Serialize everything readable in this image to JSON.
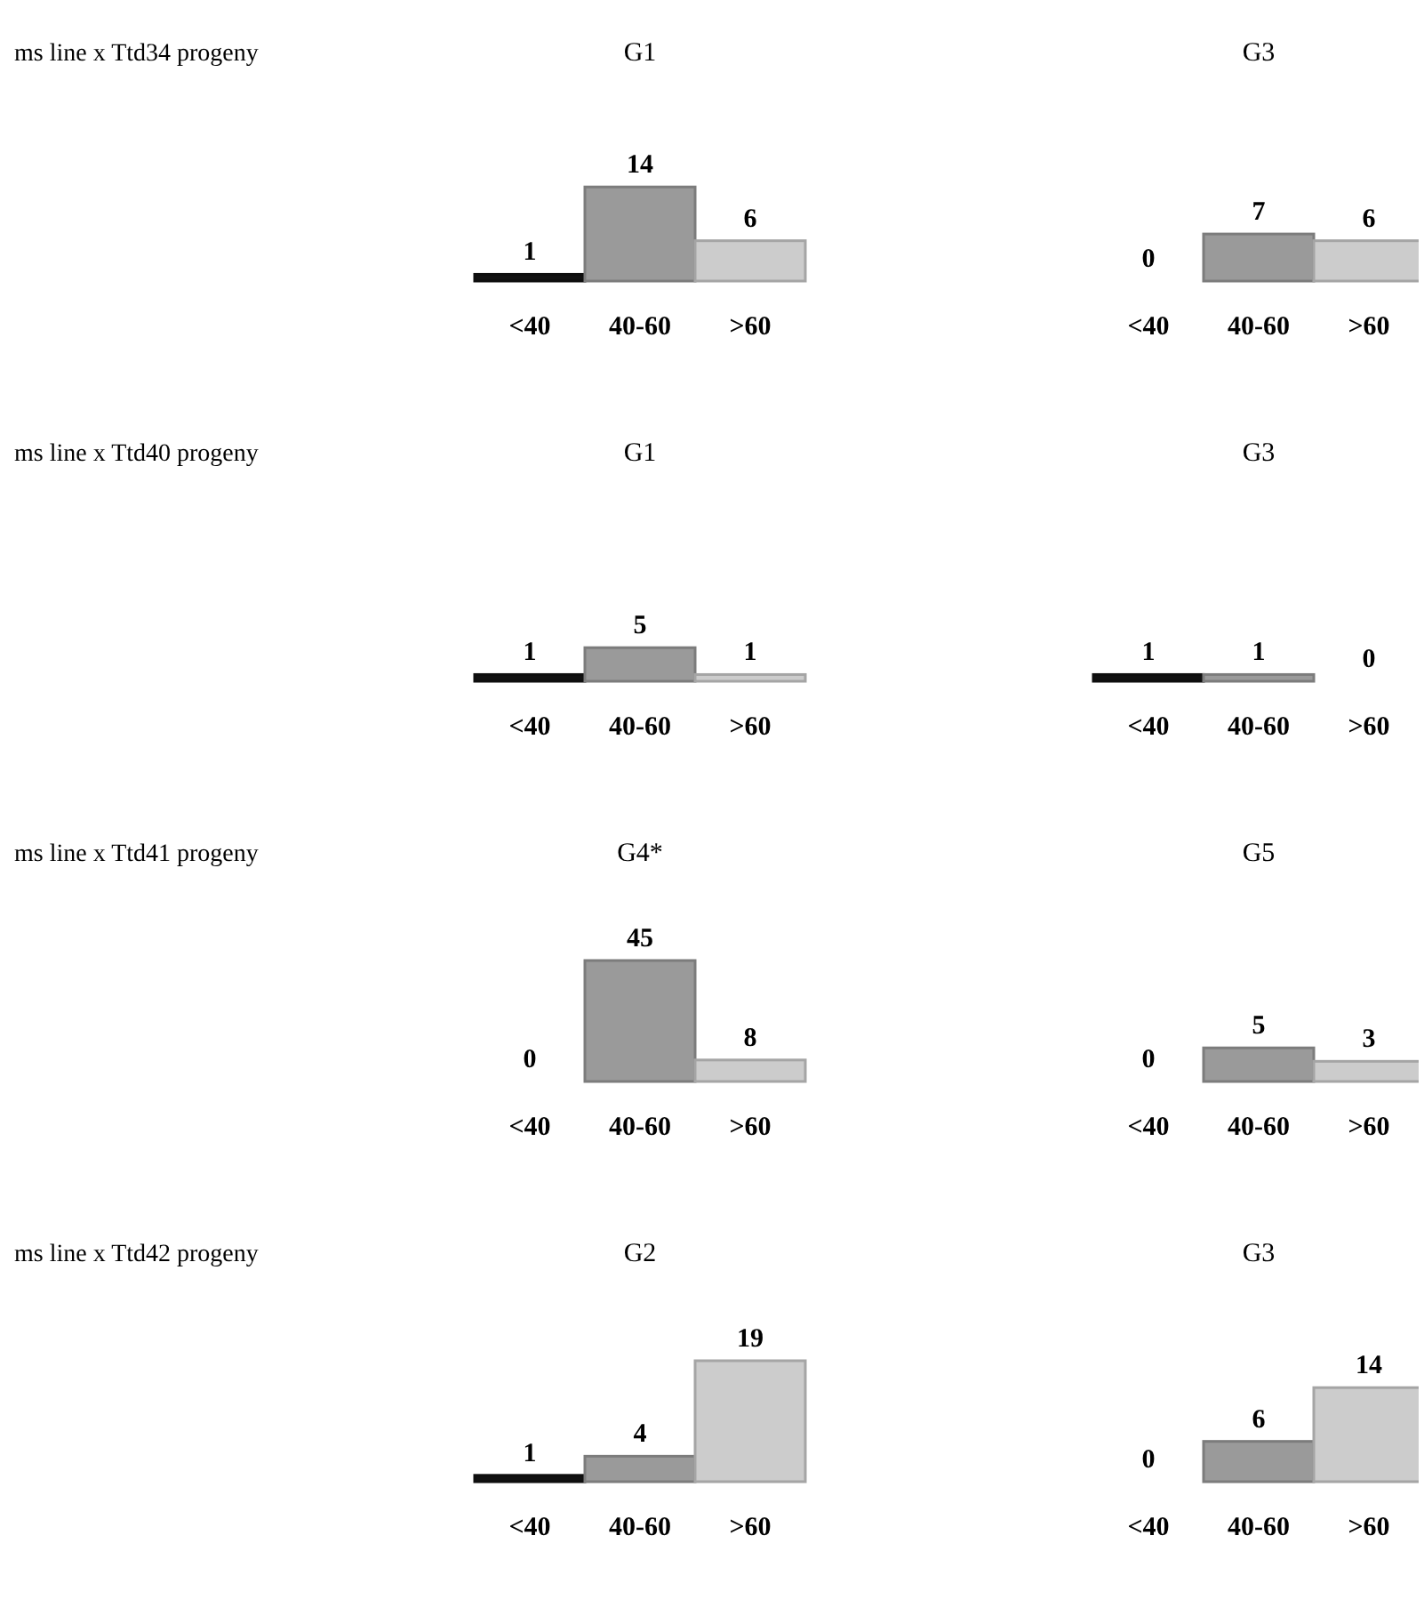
{
  "chart_data": [
    {
      "type": "bar",
      "title": "G1",
      "annotations": [
        "ms line x Ttd34 progeny"
      ],
      "categories": [
        "<40",
        "40-60",
        ">60"
      ],
      "values": [
        1,
        14,
        6
      ],
      "colors": [
        "#111111",
        "#9a9a9a",
        "#cccccc"
      ],
      "data_labels": true
    },
    {
      "type": "bar",
      "title": "G3",
      "categories": [
        "<40",
        "40-60",
        ">60"
      ],
      "values": [
        0,
        7,
        6
      ],
      "colors": [
        "#111111",
        "#9a9a9a",
        "#cccccc"
      ],
      "data_labels": true
    },
    {
      "type": "bar",
      "title": "G1",
      "annotations": [
        "ms line x Ttd40 progeny"
      ],
      "categories": [
        "<40",
        "40-60",
        ">60"
      ],
      "values": [
        1,
        5,
        1
      ],
      "colors": [
        "#111111",
        "#9a9a9a",
        "#cccccc"
      ],
      "data_labels": true
    },
    {
      "type": "bar",
      "title": "G3",
      "categories": [
        "<40",
        "40-60",
        ">60"
      ],
      "values": [
        1,
        1,
        0
      ],
      "colors": [
        "#111111",
        "#9a9a9a",
        "#cccccc"
      ],
      "data_labels": true
    },
    {
      "type": "bar",
      "title": "G4*",
      "annotations": [
        "ms line x Ttd41 progeny"
      ],
      "categories": [
        "<40",
        "40-60",
        ">60"
      ],
      "values": [
        0,
        45,
        8
      ],
      "colors": [
        "#111111",
        "#9a9a9a",
        "#cccccc"
      ],
      "data_labels": true
    },
    {
      "type": "bar",
      "title": "G5",
      "categories": [
        "<40",
        "40-60",
        ">60"
      ],
      "values": [
        0,
        5,
        3
      ],
      "colors": [
        "#111111",
        "#9a9a9a",
        "#cccccc"
      ],
      "data_labels": true
    },
    {
      "type": "bar",
      "title": "G2",
      "annotations": [
        "ms line x Ttd42 progeny"
      ],
      "categories": [
        "<40",
        "40-60",
        ">60"
      ],
      "values": [
        1,
        4,
        19
      ],
      "colors": [
        "#111111",
        "#9a9a9a",
        "#cccccc"
      ],
      "data_labels": true
    },
    {
      "type": "bar",
      "title": "G3",
      "categories": [
        "<40",
        "40-60",
        ">60"
      ],
      "values": [
        0,
        6,
        14
      ],
      "colors": [
        "#111111",
        "#9a9a9a",
        "#cccccc"
      ],
      "data_labels": true
    }
  ]
}
